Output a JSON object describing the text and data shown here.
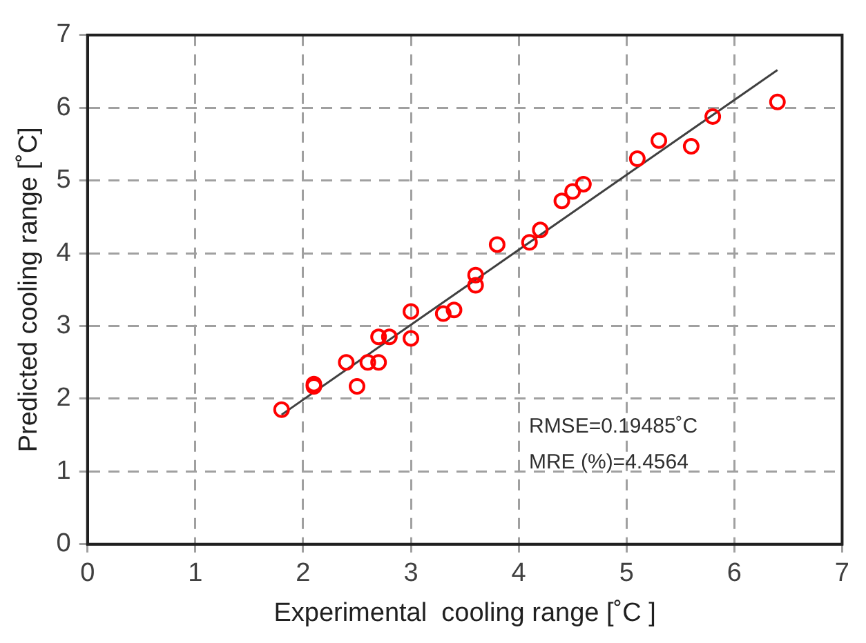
{
  "chart_data": {
    "type": "scatter",
    "xlabel": "Experimental  cooling range [˚C ]",
    "ylabel": "Predicted cooling range [˚C]",
    "xlim": [
      0,
      7
    ],
    "ylim": [
      0,
      7
    ],
    "xticks": [
      0,
      1,
      2,
      3,
      4,
      5,
      6,
      7
    ],
    "yticks": [
      0,
      1,
      2,
      3,
      4,
      5,
      6,
      7
    ],
    "grid": true,
    "legend": false,
    "marker": "circle",
    "annotations": [
      "RMSE=0.19485˚C",
      "MRE (%)=4.4564"
    ],
    "series": [
      {
        "color": "#ff0000",
        "x": [
          1.8,
          2.1,
          2.1,
          2.4,
          2.5,
          2.6,
          2.7,
          2.7,
          2.8,
          3.0,
          3.0,
          3.3,
          3.4,
          3.6,
          3.6,
          3.8,
          4.1,
          4.2,
          4.4,
          4.5,
          4.6,
          5.1,
          5.3,
          5.6,
          5.8,
          6.4
        ],
        "values": [
          1.85,
          2.2,
          2.17,
          2.5,
          2.17,
          2.5,
          2.85,
          2.5,
          2.85,
          3.2,
          2.83,
          3.17,
          3.22,
          3.7,
          3.56,
          4.12,
          4.15,
          4.32,
          4.72,
          4.85,
          4.95,
          5.3,
          5.55,
          5.47,
          5.88,
          6.08
        ]
      },
      {
        "type": "line",
        "color": "#404040",
        "x": [
          1.8,
          6.4
        ],
        "values": [
          1.78,
          6.52
        ],
        "marker": "none"
      }
    ]
  }
}
